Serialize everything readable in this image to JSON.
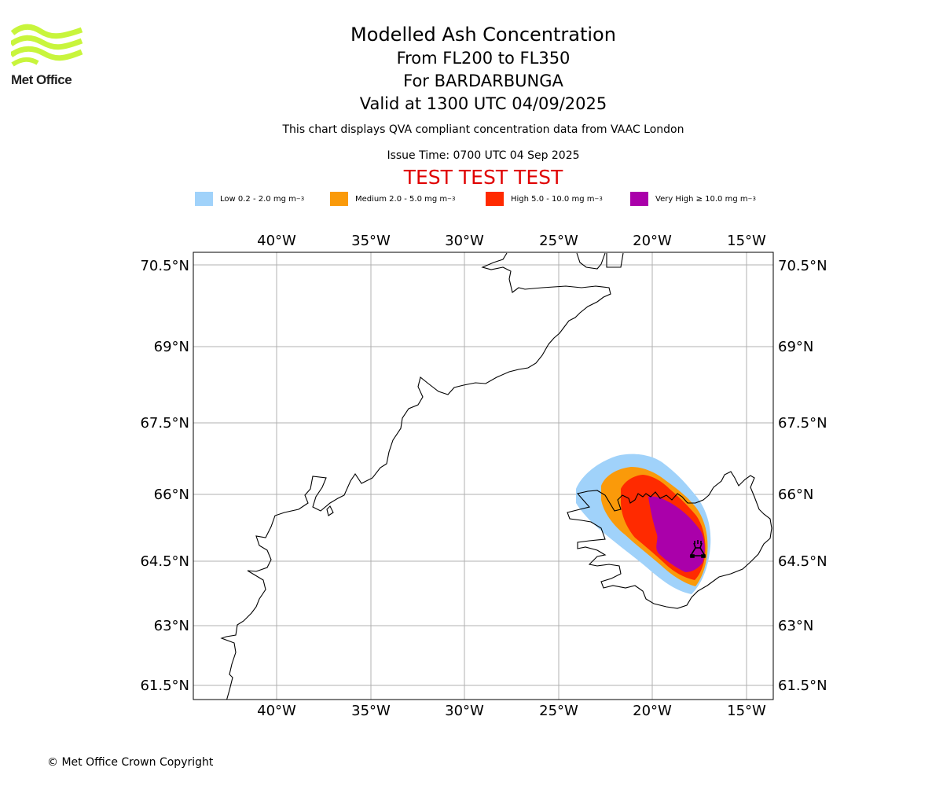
{
  "header": {
    "logo_text": "Met Office",
    "title": "Modelled Ash Concentration",
    "level_range": "From FL200 to FL350",
    "volcano": "For BARDARBUNGA",
    "valid_time": "Valid at 1300 UTC 04/09/2025",
    "description": "This chart displays QVA compliant concentration data from VAAC London",
    "issue_time": "Issue Time: 0700 UTC 04 Sep 2025",
    "test_banner": "TEST TEST TEST"
  },
  "legend": [
    {
      "label": "Low 0.2 - 2.0 mg m",
      "sup": "−3",
      "color": "#a0d2fa"
    },
    {
      "label": "Medium 2.0 - 5.0 mg m",
      "sup": "−3",
      "color": "#fa9a0a"
    },
    {
      "label": "High 5.0 - 10.0 mg m",
      "sup": "−3",
      "color": "#ff2a00"
    },
    {
      "label": "Very High  ≥  10.0 mg m",
      "sup": "−3",
      "color": "#aa00aa"
    }
  ],
  "map": {
    "lon_ticks": [
      "40°W",
      "35°W",
      "30°W",
      "25°W",
      "20°W",
      "15°W"
    ],
    "lat_ticks": [
      "70.5°N",
      "69°N",
      "67.5°N",
      "66°N",
      "64.5°N",
      "63°N",
      "61.5°N"
    ],
    "volcano_marker": "volcano-icon"
  },
  "footer": {
    "copyright": "© Met Office Crown Copyright"
  }
}
